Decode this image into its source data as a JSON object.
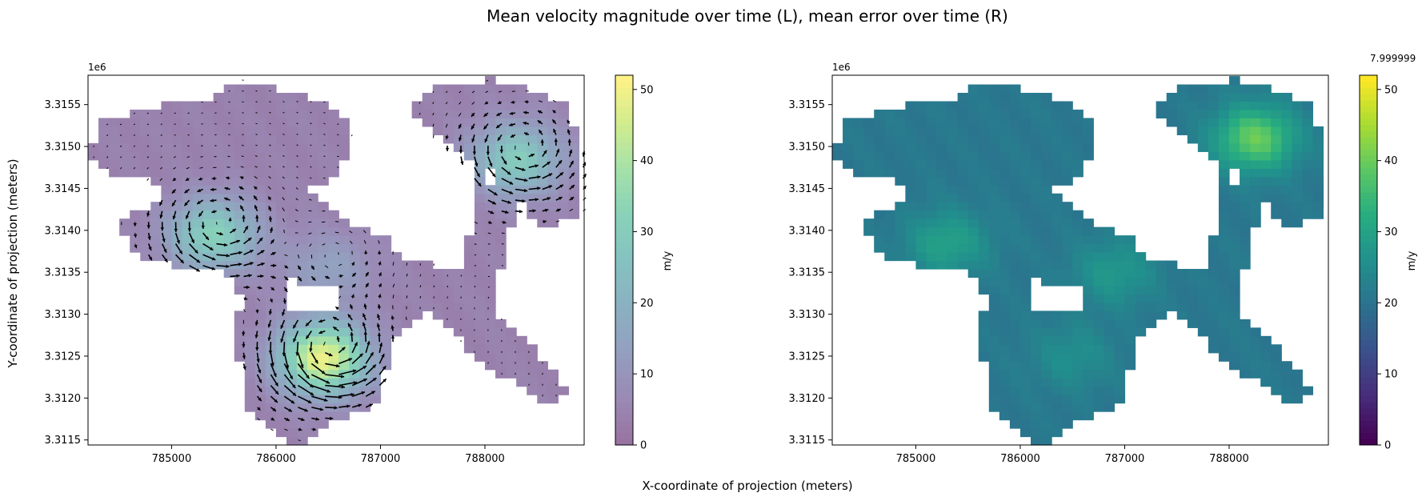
{
  "figure": {
    "suptitle": "Mean velocity magnitude over time (L), mean error over time (R)",
    "xlabel": "X-coordinate of projection (meters)",
    "ylabel": "Y-coordinate of projection (meters)"
  },
  "chart_data": [
    {
      "type": "heatmap",
      "panel": "left",
      "title": "",
      "content": "gridded velocity magnitude with quiver arrows (flow direction)",
      "colormap": "viridis (alpha 0.5)",
      "offset_text": "1e6",
      "xlim": [
        784200,
        788950
      ],
      "ylim": [
        3311440,
        3315850
      ],
      "xticks": [
        785000,
        786000,
        787000,
        788000
      ],
      "xtick_labels": [
        "785000",
        "786000",
        "787000",
        "788000"
      ],
      "yticks": [
        3.3115,
        3.312,
        3.3125,
        3.313,
        3.3135,
        3.314,
        3.3145,
        3.315,
        3.3155
      ],
      "ytick_labels": [
        "3.3115",
        "3.3120",
        "3.3125",
        "3.3130",
        "3.3135",
        "3.3140",
        "3.3145",
        "3.3150",
        "3.3155"
      ],
      "colorbar": {
        "label": "m/y",
        "range": [
          0,
          52
        ],
        "ticks": [
          0,
          10,
          20,
          30,
          40,
          50
        ],
        "tick_labels": [
          "0",
          "10",
          "20",
          "30",
          "40",
          "50"
        ]
      },
      "hotspots": [
        {
          "x": 786450,
          "y": 3312480,
          "value": 50
        },
        {
          "x": 785400,
          "y": 3313950,
          "value": 32
        },
        {
          "x": 788300,
          "y": 3314850,
          "value": 30
        },
        {
          "x": 786500,
          "y": 3313550,
          "value": 14
        }
      ]
    },
    {
      "type": "heatmap",
      "panel": "right",
      "title": "",
      "content": "gridded mean error",
      "colormap": "viridis",
      "offset_text": "1e6",
      "corner_annotation": "7.999999",
      "xlim": [
        784200,
        788950
      ],
      "ylim": [
        3311440,
        3315850
      ],
      "xticks": [
        785000,
        786000,
        787000,
        788000
      ],
      "xtick_labels": [
        "785000",
        "786000",
        "787000",
        "788000"
      ],
      "yticks": [
        3.3115,
        3.312,
        3.3125,
        3.313,
        3.3135,
        3.314,
        3.3145,
        3.315,
        3.3155
      ],
      "ytick_labels": [
        "3.3115",
        "3.3120",
        "3.3125",
        "3.3130",
        "3.3135",
        "3.3140",
        "3.3145",
        "3.3150",
        "3.3155"
      ],
      "colorbar": {
        "label": "m/y",
        "range": [
          0,
          52
        ],
        "ticks": [
          0,
          10,
          20,
          30,
          40,
          50
        ],
        "tick_labels": [
          "0",
          "10",
          "20",
          "30",
          "40",
          "50"
        ]
      },
      "hotspots": [
        {
          "x": 788250,
          "y": 3315100,
          "value": 40
        },
        {
          "x": 785300,
          "y": 3313850,
          "value": 30
        },
        {
          "x": 786900,
          "y": 3313500,
          "value": 28
        },
        {
          "x": 786500,
          "y": 3312500,
          "value": 26
        }
      ],
      "background_value": 21
    }
  ]
}
